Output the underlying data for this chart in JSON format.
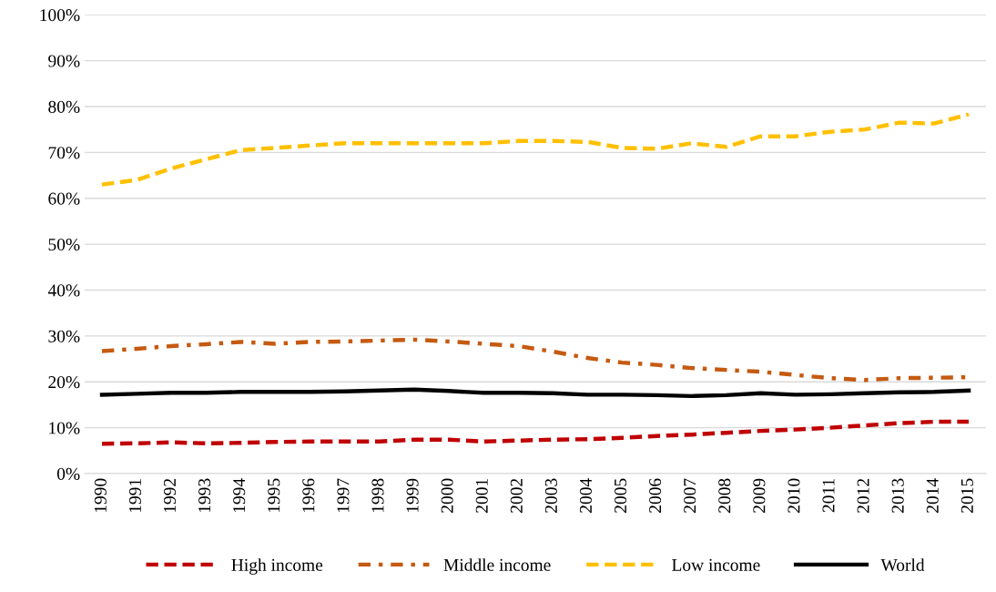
{
  "chart_data": {
    "type": "line",
    "categories": [
      "1990",
      "1991",
      "1992",
      "1993",
      "1994",
      "1995",
      "1996",
      "1997",
      "1998",
      "1999",
      "2000",
      "2001",
      "2002",
      "2003",
      "2004",
      "2005",
      "2006",
      "2007",
      "2008",
      "2009",
      "2010",
      "2011",
      "2012",
      "2013",
      "2014",
      "2015"
    ],
    "series": [
      {
        "name": "High income",
        "color": "#c00000",
        "line_style": "dashed",
        "values": [
          6.5,
          6.6,
          6.8,
          6.6,
          6.7,
          6.9,
          7,
          7,
          7,
          7.4,
          7.4,
          7,
          7.2,
          7.4,
          7.5,
          7.8,
          8.2,
          8.5,
          8.9,
          9.3,
          9.6,
          10,
          10.5,
          11,
          11.3,
          11.3
        ]
      },
      {
        "name": "Middle income",
        "color": "#c55a11",
        "line_style": "dashdot",
        "values": [
          26.7,
          27.2,
          27.8,
          28.2,
          28.7,
          28.3,
          28.7,
          28.8,
          29,
          29.2,
          28.8,
          28.3,
          27.8,
          26.6,
          25.2,
          24.2,
          23.7,
          23,
          22.6,
          22.2,
          21.5,
          20.8,
          20.4,
          20.8,
          20.9,
          21
        ]
      },
      {
        "name": "Low income",
        "color": "#ffc000",
        "line_style": "dashed",
        "values": [
          63,
          64,
          66.5,
          68.5,
          70.5,
          71,
          71.5,
          72,
          72,
          72,
          72,
          72,
          72.5,
          72.5,
          72.3,
          71,
          70.8,
          72,
          71.2,
          73.5,
          73.5,
          74.5,
          75,
          76.5,
          76.3,
          78.3
        ]
      },
      {
        "name": "World",
        "color": "#000000",
        "line_style": "solid",
        "values": [
          17.2,
          17.4,
          17.6,
          17.6,
          17.8,
          17.8,
          17.8,
          17.9,
          18.1,
          18.3,
          18,
          17.6,
          17.6,
          17.5,
          17.2,
          17.2,
          17.1,
          16.9,
          17.1,
          17.5,
          17.2,
          17.3,
          17.5,
          17.7,
          17.8,
          18.1
        ]
      }
    ],
    "ylim": [
      0,
      100
    ],
    "yticks": [
      {
        "value": 0,
        "label": "0%"
      },
      {
        "value": 10,
        "label": "10%"
      },
      {
        "value": 20,
        "label": "20%"
      },
      {
        "value": 30,
        "label": "30%"
      },
      {
        "value": 40,
        "label": "40%"
      },
      {
        "value": 50,
        "label": "50%"
      },
      {
        "value": 60,
        "label": "60%"
      },
      {
        "value": 70,
        "label": "70%"
      },
      {
        "value": 80,
        "label": "80%"
      },
      {
        "value": 90,
        "label": "90%"
      },
      {
        "value": 100,
        "label": "100%"
      }
    ],
    "grid": "y",
    "legend": "bottom",
    "marker": "none"
  }
}
